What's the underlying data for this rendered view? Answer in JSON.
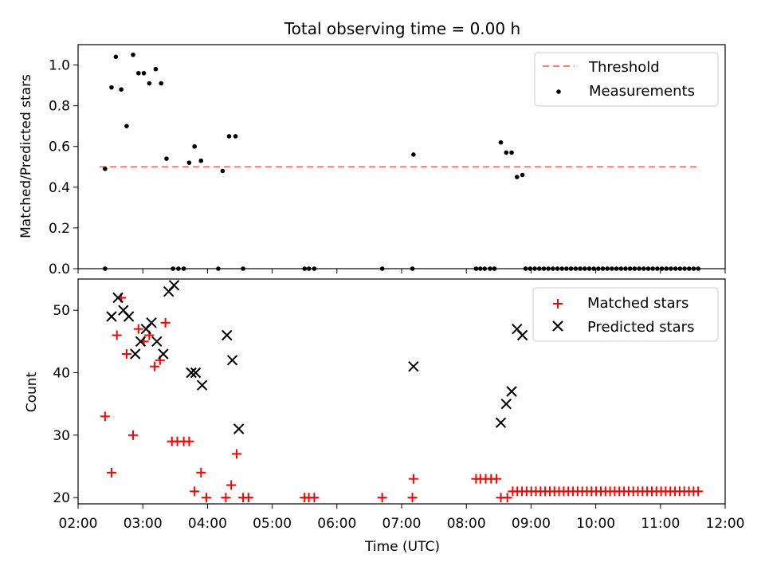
{
  "title": "Total observing time = 0.00 h",
  "xlabel": "Time (UTC)",
  "colors": {
    "threshold": "#ff7777",
    "measurements": "#000000",
    "matched": "#ff0000",
    "predicted": "#000000"
  },
  "chart_data": [
    {
      "type": "scatter",
      "ylabel": "Matched/Predicted stars",
      "xlim": [
        "02:00",
        "12:00"
      ],
      "ylim": [
        0,
        1.1
      ],
      "yticks": [
        "0.0",
        "0.2",
        "0.4",
        "0.6",
        "0.8",
        "1.0"
      ],
      "legend": "top-right",
      "threshold": {
        "name": "Threshold",
        "y": 0.5,
        "x": [
          "02:20",
          "11:35"
        ],
        "style": "dashed"
      },
      "series": [
        {
          "name": "Measurements",
          "marker": "dot",
          "points": [
            [
              "02:25",
              0.0
            ],
            [
              "02:25",
              0.49
            ],
            [
              "02:31",
              0.89
            ],
            [
              "02:35",
              1.04
            ],
            [
              "02:40",
              0.88
            ],
            [
              "02:45",
              0.7
            ],
            [
              "02:51",
              1.05
            ],
            [
              "02:56",
              0.96
            ],
            [
              "03:01",
              0.96
            ],
            [
              "03:06",
              0.91
            ],
            [
              "03:12",
              0.98
            ],
            [
              "03:17",
              0.91
            ],
            [
              "03:22",
              0.54
            ],
            [
              "03:28",
              0.0
            ],
            [
              "03:33",
              0.0
            ],
            [
              "03:38",
              0.0
            ],
            [
              "03:43",
              0.52
            ],
            [
              "03:48",
              0.6
            ],
            [
              "03:54",
              0.53
            ],
            [
              "04:10",
              0.0
            ],
            [
              "04:14",
              0.48
            ],
            [
              "04:20",
              0.65
            ],
            [
              "04:26",
              0.65
            ],
            [
              "04:33",
              0.0
            ],
            [
              "05:30",
              0.0
            ],
            [
              "05:34",
              0.0
            ],
            [
              "05:39",
              0.0
            ],
            [
              "06:42",
              0.0
            ],
            [
              "07:10",
              0.0
            ],
            [
              "07:11",
              0.56
            ],
            [
              "08:09",
              0.0
            ],
            [
              "08:13",
              0.0
            ],
            [
              "08:17",
              0.0
            ],
            [
              "08:22",
              0.0
            ],
            [
              "08:26",
              0.0
            ],
            [
              "08:32",
              0.62
            ],
            [
              "08:37",
              0.57
            ],
            [
              "08:42",
              0.57
            ],
            [
              "08:47",
              0.45
            ],
            [
              "08:52",
              0.46
            ]
          ],
          "zero_run": {
            "from": "08:55",
            "to": "11:35",
            "count": 39
          }
        }
      ]
    },
    {
      "type": "scatter",
      "ylabel": "Count",
      "xlabel": "Time (UTC)",
      "xlim": [
        "02:00",
        "12:00"
      ],
      "ylim": [
        19,
        55
      ],
      "yticks": [
        "20",
        "30",
        "40",
        "50"
      ],
      "xticks": [
        "02:00",
        "03:00",
        "04:00",
        "05:00",
        "06:00",
        "07:00",
        "08:00",
        "09:00",
        "10:00",
        "11:00",
        "12:00"
      ],
      "legend": "top-right",
      "series": [
        {
          "name": "Matched stars",
          "marker": "plus",
          "points": [
            [
              "02:25",
              33
            ],
            [
              "02:31",
              24
            ],
            [
              "02:36",
              46
            ],
            [
              "02:40",
              52
            ],
            [
              "02:45",
              43
            ],
            [
              "02:51",
              30
            ],
            [
              "02:56",
              47
            ],
            [
              "03:01",
              45
            ],
            [
              "03:06",
              46
            ],
            [
              "03:11",
              41
            ],
            [
              "03:16",
              42
            ],
            [
              "03:21",
              48
            ],
            [
              "03:27",
              29
            ],
            [
              "03:32",
              29
            ],
            [
              "03:38",
              29
            ],
            [
              "03:43",
              29
            ],
            [
              "03:48",
              21
            ],
            [
              "03:54",
              24
            ],
            [
              "03:59",
              20
            ],
            [
              "04:17",
              20
            ],
            [
              "04:22",
              22
            ],
            [
              "04:27",
              27
            ],
            [
              "04:33",
              20
            ],
            [
              "04:38",
              20
            ],
            [
              "05:30",
              20
            ],
            [
              "05:34",
              20
            ],
            [
              "05:39",
              20
            ],
            [
              "06:42",
              20
            ],
            [
              "07:10",
              20
            ],
            [
              "07:11",
              23
            ],
            [
              "08:09",
              23
            ],
            [
              "08:13",
              23
            ],
            [
              "08:18",
              23
            ],
            [
              "08:23",
              23
            ],
            [
              "08:28",
              23
            ],
            [
              "08:32",
              20
            ],
            [
              "08:38",
              20
            ]
          ],
          "constant_run": {
            "from": "08:43",
            "to": "11:35",
            "value": 21,
            "count": 41
          }
        },
        {
          "name": "Predicted stars",
          "marker": "x",
          "points": [
            [
              "02:31",
              49
            ],
            [
              "02:37",
              52
            ],
            [
              "02:42",
              50
            ],
            [
              "02:47",
              49
            ],
            [
              "02:53",
              43
            ],
            [
              "02:58",
              45
            ],
            [
              "03:03",
              47
            ],
            [
              "03:08",
              48
            ],
            [
              "03:13",
              45
            ],
            [
              "03:19",
              43
            ],
            [
              "03:24",
              53
            ],
            [
              "03:29",
              54
            ],
            [
              "03:45",
              40
            ],
            [
              "03:49",
              40
            ],
            [
              "03:55",
              38
            ],
            [
              "04:18",
              46
            ],
            [
              "04:23",
              42
            ],
            [
              "04:29",
              31
            ],
            [
              "07:11",
              41
            ],
            [
              "08:32",
              32
            ],
            [
              "08:37",
              35
            ],
            [
              "08:42",
              37
            ],
            [
              "08:47",
              47
            ],
            [
              "08:52",
              46
            ]
          ]
        }
      ]
    }
  ]
}
